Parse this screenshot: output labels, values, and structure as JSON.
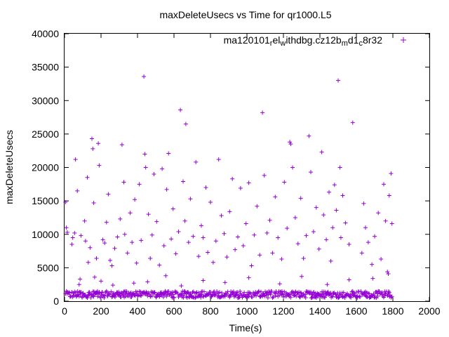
{
  "chart_data": {
    "type": "scatter",
    "title": "maxDeleteUsecs vs Time for qr1000.L5",
    "xlabel": "Time(s)",
    "ylabel": "maxDeleteUsecs",
    "xlim": [
      0,
      2000
    ],
    "ylim": [
      0,
      40000
    ],
    "x_ticks": [
      "0",
      "200",
      "400",
      "600",
      "800",
      "1000",
      "1200",
      "1400",
      "1600",
      "1800",
      "2000"
    ],
    "y_ticks": [
      "0",
      "5000",
      "10000",
      "15000",
      "20000",
      "25000",
      "30000",
      "35000",
      "40000"
    ],
    "grid": false,
    "legend_position": "top-right",
    "marker": "+",
    "series": [
      {
        "name_parts": [
          {
            "t": "ma120101",
            "sub": false
          },
          {
            "t": "r",
            "sub": true
          },
          {
            "t": "el",
            "sub": false
          },
          {
            "t": "w",
            "sub": true
          },
          {
            "t": "ithdbg.cz12b",
            "sub": false
          },
          {
            "t": "m",
            "sub": true
          },
          {
            "t": "d1",
            "sub": false
          },
          {
            "t": "c",
            "sub": true
          },
          {
            "t": "8r32",
            "sub": false
          }
        ],
        "color": "#9400d3",
        "x_range": [
          5,
          1795
        ],
        "time_step": 5,
        "baseline_band": [
          500,
          1500
        ],
        "points": [
          [
            5,
            14800
          ],
          [
            10,
            11000
          ],
          [
            15,
            10300
          ],
          [
            40,
            8500
          ],
          [
            45,
            9500
          ],
          [
            55,
            10200
          ],
          [
            60,
            21200
          ],
          [
            70,
            16500
          ],
          [
            80,
            2500
          ],
          [
            90,
            9800
          ],
          [
            110,
            12000
          ],
          [
            115,
            9000
          ],
          [
            125,
            18500
          ],
          [
            130,
            5800
          ],
          [
            140,
            8000
          ],
          [
            150,
            24300
          ],
          [
            155,
            22800
          ],
          [
            160,
            14700
          ],
          [
            175,
            6400
          ],
          [
            185,
            23600
          ],
          [
            190,
            20300
          ],
          [
            200,
            3000
          ],
          [
            210,
            9200
          ],
          [
            220,
            8700
          ],
          [
            230,
            11800
          ],
          [
            240,
            16000
          ],
          [
            250,
            6100
          ],
          [
            260,
            5300
          ],
          [
            275,
            7900
          ],
          [
            290,
            9600
          ],
          [
            305,
            12300
          ],
          [
            315,
            23400
          ],
          [
            325,
            17800
          ],
          [
            330,
            10000
          ],
          [
            345,
            7200
          ],
          [
            360,
            13200
          ],
          [
            370,
            8800
          ],
          [
            385,
            15200
          ],
          [
            395,
            5700
          ],
          [
            410,
            17500
          ],
          [
            420,
            9100
          ],
          [
            435,
            33600
          ],
          [
            440,
            22000
          ],
          [
            445,
            20000
          ],
          [
            460,
            13000
          ],
          [
            470,
            6400
          ],
          [
            480,
            9900
          ],
          [
            490,
            19000
          ],
          [
            505,
            11900
          ],
          [
            520,
            5400
          ],
          [
            535,
            19800
          ],
          [
            545,
            8300
          ],
          [
            560,
            16700
          ],
          [
            570,
            22100
          ],
          [
            585,
            9300
          ],
          [
            595,
            13800
          ],
          [
            610,
            7100
          ],
          [
            625,
            10400
          ],
          [
            635,
            28600
          ],
          [
            650,
            17900
          ],
          [
            660,
            12000
          ],
          [
            665,
            26500
          ],
          [
            680,
            8800
          ],
          [
            690,
            15300
          ],
          [
            705,
            9700
          ],
          [
            720,
            20800
          ],
          [
            735,
            6700
          ],
          [
            750,
            11300
          ],
          [
            760,
            9500
          ],
          [
            775,
            17000
          ],
          [
            785,
            7300
          ],
          [
            800,
            14800
          ],
          [
            815,
            5800
          ],
          [
            830,
            9000
          ],
          [
            845,
            21200
          ],
          [
            860,
            12800
          ],
          [
            875,
            10100
          ],
          [
            890,
            6600
          ],
          [
            905,
            13400
          ],
          [
            920,
            18300
          ],
          [
            935,
            7700
          ],
          [
            950,
            9600
          ],
          [
            965,
            16900
          ],
          [
            980,
            8300
          ],
          [
            995,
            11600
          ],
          [
            1010,
            17700
          ],
          [
            1025,
            5300
          ],
          [
            1040,
            9900
          ],
          [
            1055,
            14200
          ],
          [
            1070,
            6900
          ],
          [
            1085,
            28200
          ],
          [
            1095,
            18800
          ],
          [
            1110,
            10200
          ],
          [
            1125,
            12100
          ],
          [
            1140,
            7200
          ],
          [
            1155,
            15600
          ],
          [
            1170,
            9500
          ],
          [
            1190,
            6300
          ],
          [
            1205,
            17800
          ],
          [
            1220,
            10900
          ],
          [
            1235,
            23800
          ],
          [
            1240,
            23500
          ],
          [
            1250,
            20000
          ],
          [
            1265,
            12500
          ],
          [
            1280,
            8600
          ],
          [
            1295,
            15400
          ],
          [
            1310,
            6400
          ],
          [
            1325,
            9800
          ],
          [
            1340,
            24700
          ],
          [
            1350,
            19300
          ],
          [
            1365,
            10400
          ],
          [
            1380,
            14000
          ],
          [
            1395,
            7800
          ],
          [
            1410,
            22300
          ],
          [
            1420,
            12900
          ],
          [
            1435,
            9200
          ],
          [
            1450,
            16300
          ],
          [
            1460,
            6000
          ],
          [
            1470,
            11000
          ],
          [
            1480,
            17400
          ],
          [
            1490,
            13600
          ],
          [
            1500,
            33000
          ],
          [
            1510,
            20000
          ],
          [
            1515,
            9500
          ],
          [
            1525,
            15800
          ],
          [
            1540,
            11700
          ],
          [
            1560,
            8500
          ],
          [
            1580,
            26700
          ],
          [
            1630,
            7200
          ],
          [
            1640,
            14600
          ],
          [
            1650,
            11000
          ],
          [
            1665,
            8800
          ],
          [
            1685,
            5500
          ],
          [
            1700,
            9700
          ],
          [
            1720,
            13200
          ],
          [
            1735,
            6300
          ],
          [
            1750,
            17500
          ],
          [
            1760,
            12000
          ],
          [
            1770,
            4400
          ],
          [
            1780,
            15800
          ],
          [
            1790,
            19100
          ],
          [
            1795,
            11600
          ],
          [
            85,
            3300
          ],
          [
            165,
            3600
          ],
          [
            265,
            2400
          ],
          [
            380,
            2700
          ],
          [
            455,
            2900
          ],
          [
            555,
            3800
          ],
          [
            640,
            2300
          ],
          [
            760,
            3100
          ],
          [
            880,
            2800
          ],
          [
            1010,
            3500
          ],
          [
            1180,
            2600
          ],
          [
            1300,
            3700
          ],
          [
            1440,
            2500
          ],
          [
            1560,
            3200
          ],
          [
            1690,
            3400
          ],
          [
            1775,
            4100
          ]
        ]
      }
    ]
  }
}
